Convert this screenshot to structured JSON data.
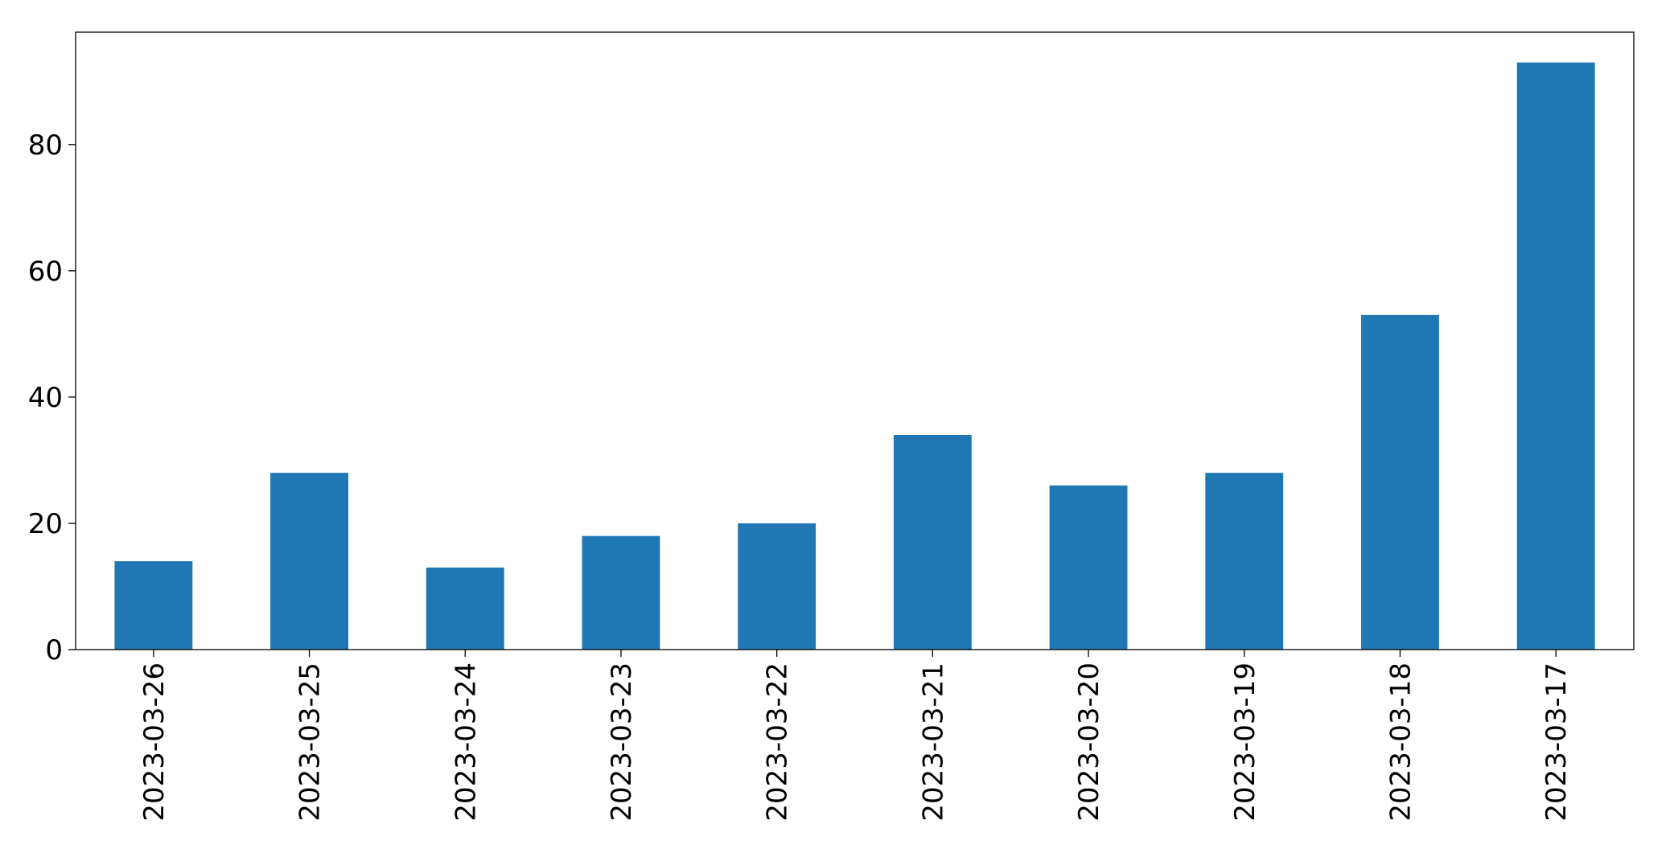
{
  "chart_data": {
    "type": "bar",
    "categories": [
      "2023-03-26",
      "2023-03-25",
      "2023-03-24",
      "2023-03-23",
      "2023-03-22",
      "2023-03-21",
      "2023-03-20",
      "2023-03-19",
      "2023-03-18",
      "2023-03-17"
    ],
    "values": [
      14,
      28,
      13,
      18,
      20,
      34,
      26,
      28,
      53,
      93
    ],
    "color": "#1f77b4",
    "ylim": [
      0,
      97.8
    ],
    "yticks": [
      0,
      20,
      40,
      60,
      80
    ],
    "grid": false
  }
}
